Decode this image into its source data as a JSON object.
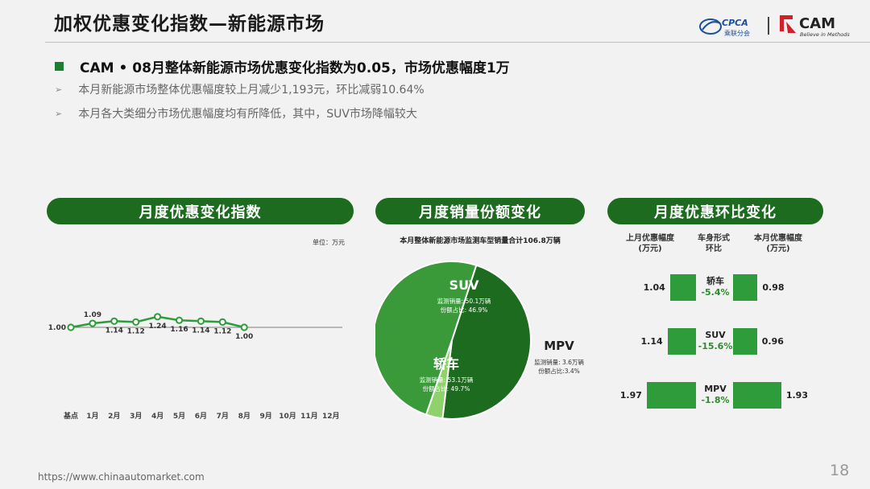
{
  "header": {
    "title": "加权优惠变化指数—新能源市场",
    "logo_cpca_text": "CPCA",
    "logo_cpca_sub": "乘联分会",
    "logo_cam_text": "CAM",
    "logo_cam_tagline": "Believe in Methods"
  },
  "summary": {
    "headline": "CAM • 08月整体新能源市场优惠变化指数为0.05，市场优惠幅度1万",
    "points": [
      "本月新能源市场整体优惠幅度较上月减少1,193元，环比减弱10.64%",
      "本月各大类细分市场优惠幅度均有所降低，其中，SUV市场降幅较大"
    ]
  },
  "panels": {
    "left_title": "月度优惠变化指数",
    "mid_title": "月度销量份额变化",
    "right_title": "月度优惠环比变化"
  },
  "footer": {
    "url": "https://www.chinaautomarket.com",
    "page": "18"
  },
  "chart_data": [
    {
      "type": "line",
      "unit_label": "单位：万元",
      "categories": [
        "基点",
        "1月",
        "2月",
        "3月",
        "4月",
        "5月",
        "6月",
        "7月",
        "8月",
        "9月",
        "10月",
        "11月",
        "12月"
      ],
      "values": [
        1.0,
        1.09,
        1.14,
        1.12,
        1.24,
        1.16,
        1.14,
        1.12,
        1.0,
        null,
        null,
        null,
        null
      ],
      "label_position": [
        "left",
        "above",
        "below",
        "below",
        "below",
        "below",
        "below",
        "below",
        "below"
      ],
      "colors": {
        "line": "#2e9c3a",
        "marker_fill": "#ffffff",
        "baseline": "#7f7f7f"
      }
    },
    {
      "type": "pie",
      "title": "本月整体新能源市场监测车型销量合计106.8万辆",
      "slices": [
        {
          "name": "SUV",
          "sales_label": "监测销量: 50.1万辆",
          "share_label": "份额占比: 46.9%",
          "value": 46.9,
          "color": "#1c6b1f"
        },
        {
          "name": "MPV",
          "sales_label": "监测销量: 3.6万辆",
          "share_label": "份额占比:3.4%",
          "value": 3.4,
          "color": "#8fd16a"
        },
        {
          "name": "轿车",
          "sales_label": "监测销量: 53.1万辆",
          "share_label": "份额占比: 49.7%",
          "value": 49.7,
          "color": "#3a9a3a"
        }
      ]
    },
    {
      "type": "bar",
      "headers": {
        "last": "上月优惠幅度\n(万元)",
        "type": "车身形式\n环比",
        "current": "本月优惠幅度\n(万元)"
      },
      "rows": [
        {
          "type": "轿车",
          "pct": "-5.4%",
          "last": 1.04,
          "last_label": "1.04",
          "current": 0.98,
          "current_label": "0.98"
        },
        {
          "type": "SUV",
          "pct": "-15.6%",
          "last": 1.14,
          "last_label": "1.14",
          "current": 0.96,
          "current_label": "0.96"
        },
        {
          "type": "MPV",
          "pct": "-1.8%",
          "last": 1.97,
          "last_label": "1.97",
          "current": 1.93,
          "current_label": "1.93"
        }
      ],
      "colors": {
        "bar": "#2e9c3a",
        "pct": "#2e8b2e"
      }
    }
  ]
}
